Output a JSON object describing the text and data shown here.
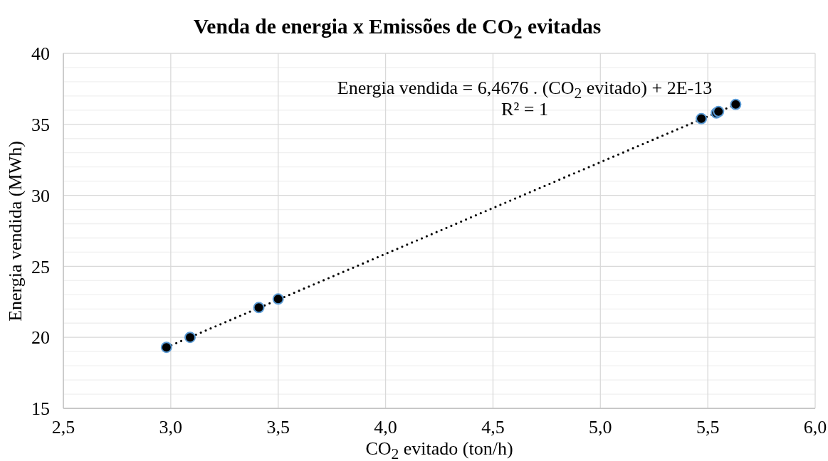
{
  "chart_data": {
    "type": "scatter",
    "title": "Venda de energia x Emissões de CO$_{2}$ evitadas",
    "xlabel": "CO$_{2}$ evitado (ton/h)",
    "ylabel": "Energia vendida (MWh)",
    "annotations": [
      "Energia vendida = 6,4676 . (CO$_{2}$ evitado) + 2E-13",
      "R² = 1"
    ],
    "x": [
      2.98,
      3.09,
      3.41,
      3.5,
      5.47,
      5.54,
      5.55,
      5.63
    ],
    "series": [
      {
        "color": "#000000",
        "values": [
          19.3,
          20.0,
          22.1,
          22.7,
          35.4,
          35.8,
          35.9,
          36.4
        ]
      },
      {
        "type": "line",
        "color": "#000000",
        "x": [
          2.98,
          5.63
        ],
        "values": [
          19.3,
          36.4
        ],
        "line_style": "dotted",
        "marker": "none"
      }
    ],
    "marker": "circle",
    "xlim": [
      2.5,
      6.0
    ],
    "xticks": [
      {
        "value": 2.5,
        "label": "2,5"
      },
      {
        "value": 3.0,
        "label": "3,0"
      },
      {
        "value": 3.5,
        "label": "3,5"
      },
      {
        "value": 4.0,
        "label": "4,0"
      },
      {
        "value": 4.5,
        "label": "4,5"
      },
      {
        "value": 5.0,
        "label": "5,0"
      },
      {
        "value": 5.5,
        "label": "5,5"
      },
      {
        "value": 6.0,
        "label": "6,0"
      }
    ],
    "ylim": [
      15,
      40
    ],
    "yticks": [
      15,
      {
        "value": 16,
        "label": null
      },
      {
        "value": 17,
        "label": null
      },
      {
        "value": 18,
        "label": null
      },
      {
        "value": 19,
        "label": null
      },
      20,
      {
        "value": 21,
        "label": null
      },
      {
        "value": 22,
        "label": null
      },
      {
        "value": 23,
        "label": null
      },
      {
        "value": 24,
        "label": null
      },
      25,
      {
        "value": 26,
        "label": null
      },
      {
        "value": 27,
        "label": null
      },
      {
        "value": 28,
        "label": null
      },
      {
        "value": 29,
        "label": null
      },
      30,
      {
        "value": 31,
        "label": null
      },
      {
        "value": 32,
        "label": null
      },
      {
        "value": 33,
        "label": null
      },
      {
        "value": 34,
        "label": null
      },
      35,
      {
        "value": 36,
        "label": null
      },
      {
        "value": 37,
        "label": null
      },
      {
        "value": 38,
        "label": null
      },
      {
        "value": 39,
        "label": null
      },
      40
    ],
    "grid": true
  }
}
